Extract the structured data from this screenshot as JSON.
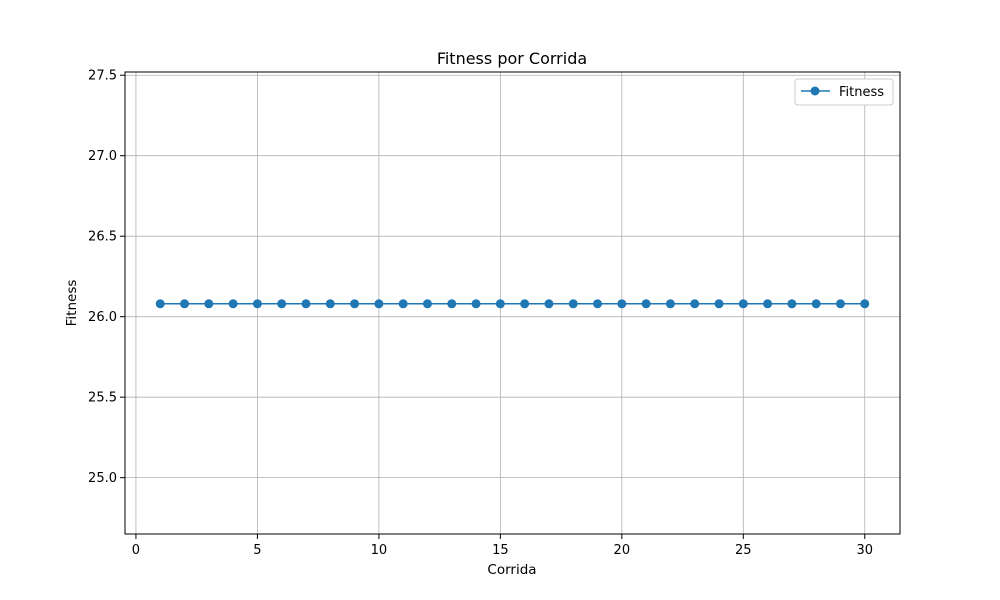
{
  "chart_data": {
    "type": "line",
    "title": "Fitness por Corrida",
    "xlabel": "Corrida",
    "ylabel": "Fitness",
    "xlim": [
      -0.45,
      31.45
    ],
    "ylim": [
      24.65,
      27.52
    ],
    "xticks": [
      0,
      5,
      10,
      15,
      20,
      25,
      30
    ],
    "yticks": [
      25.0,
      25.5,
      26.0,
      26.5,
      27.0,
      27.5
    ],
    "xtick_labels": [
      "0",
      "5",
      "10",
      "15",
      "20",
      "25",
      "30"
    ],
    "ytick_labels": [
      "25.0",
      "25.5",
      "26.0",
      "26.5",
      "27.0",
      "27.5"
    ],
    "grid": true,
    "legend": "top-right",
    "series": [
      {
        "name": "Fitness",
        "color": "#1f77b4",
        "marker": "circle",
        "x": [
          1,
          2,
          3,
          4,
          5,
          6,
          7,
          8,
          9,
          10,
          11,
          12,
          13,
          14,
          15,
          16,
          17,
          18,
          19,
          20,
          21,
          22,
          23,
          24,
          25,
          26,
          27,
          28,
          29,
          30
        ],
        "y": [
          26.08,
          26.08,
          26.08,
          26.08,
          26.08,
          26.08,
          26.08,
          26.08,
          26.08,
          26.08,
          26.08,
          26.08,
          26.08,
          26.08,
          26.08,
          26.08,
          26.08,
          26.08,
          26.08,
          26.08,
          26.08,
          26.08,
          26.08,
          26.08,
          26.08,
          26.08,
          26.08,
          26.08,
          26.08,
          26.08
        ]
      }
    ]
  }
}
